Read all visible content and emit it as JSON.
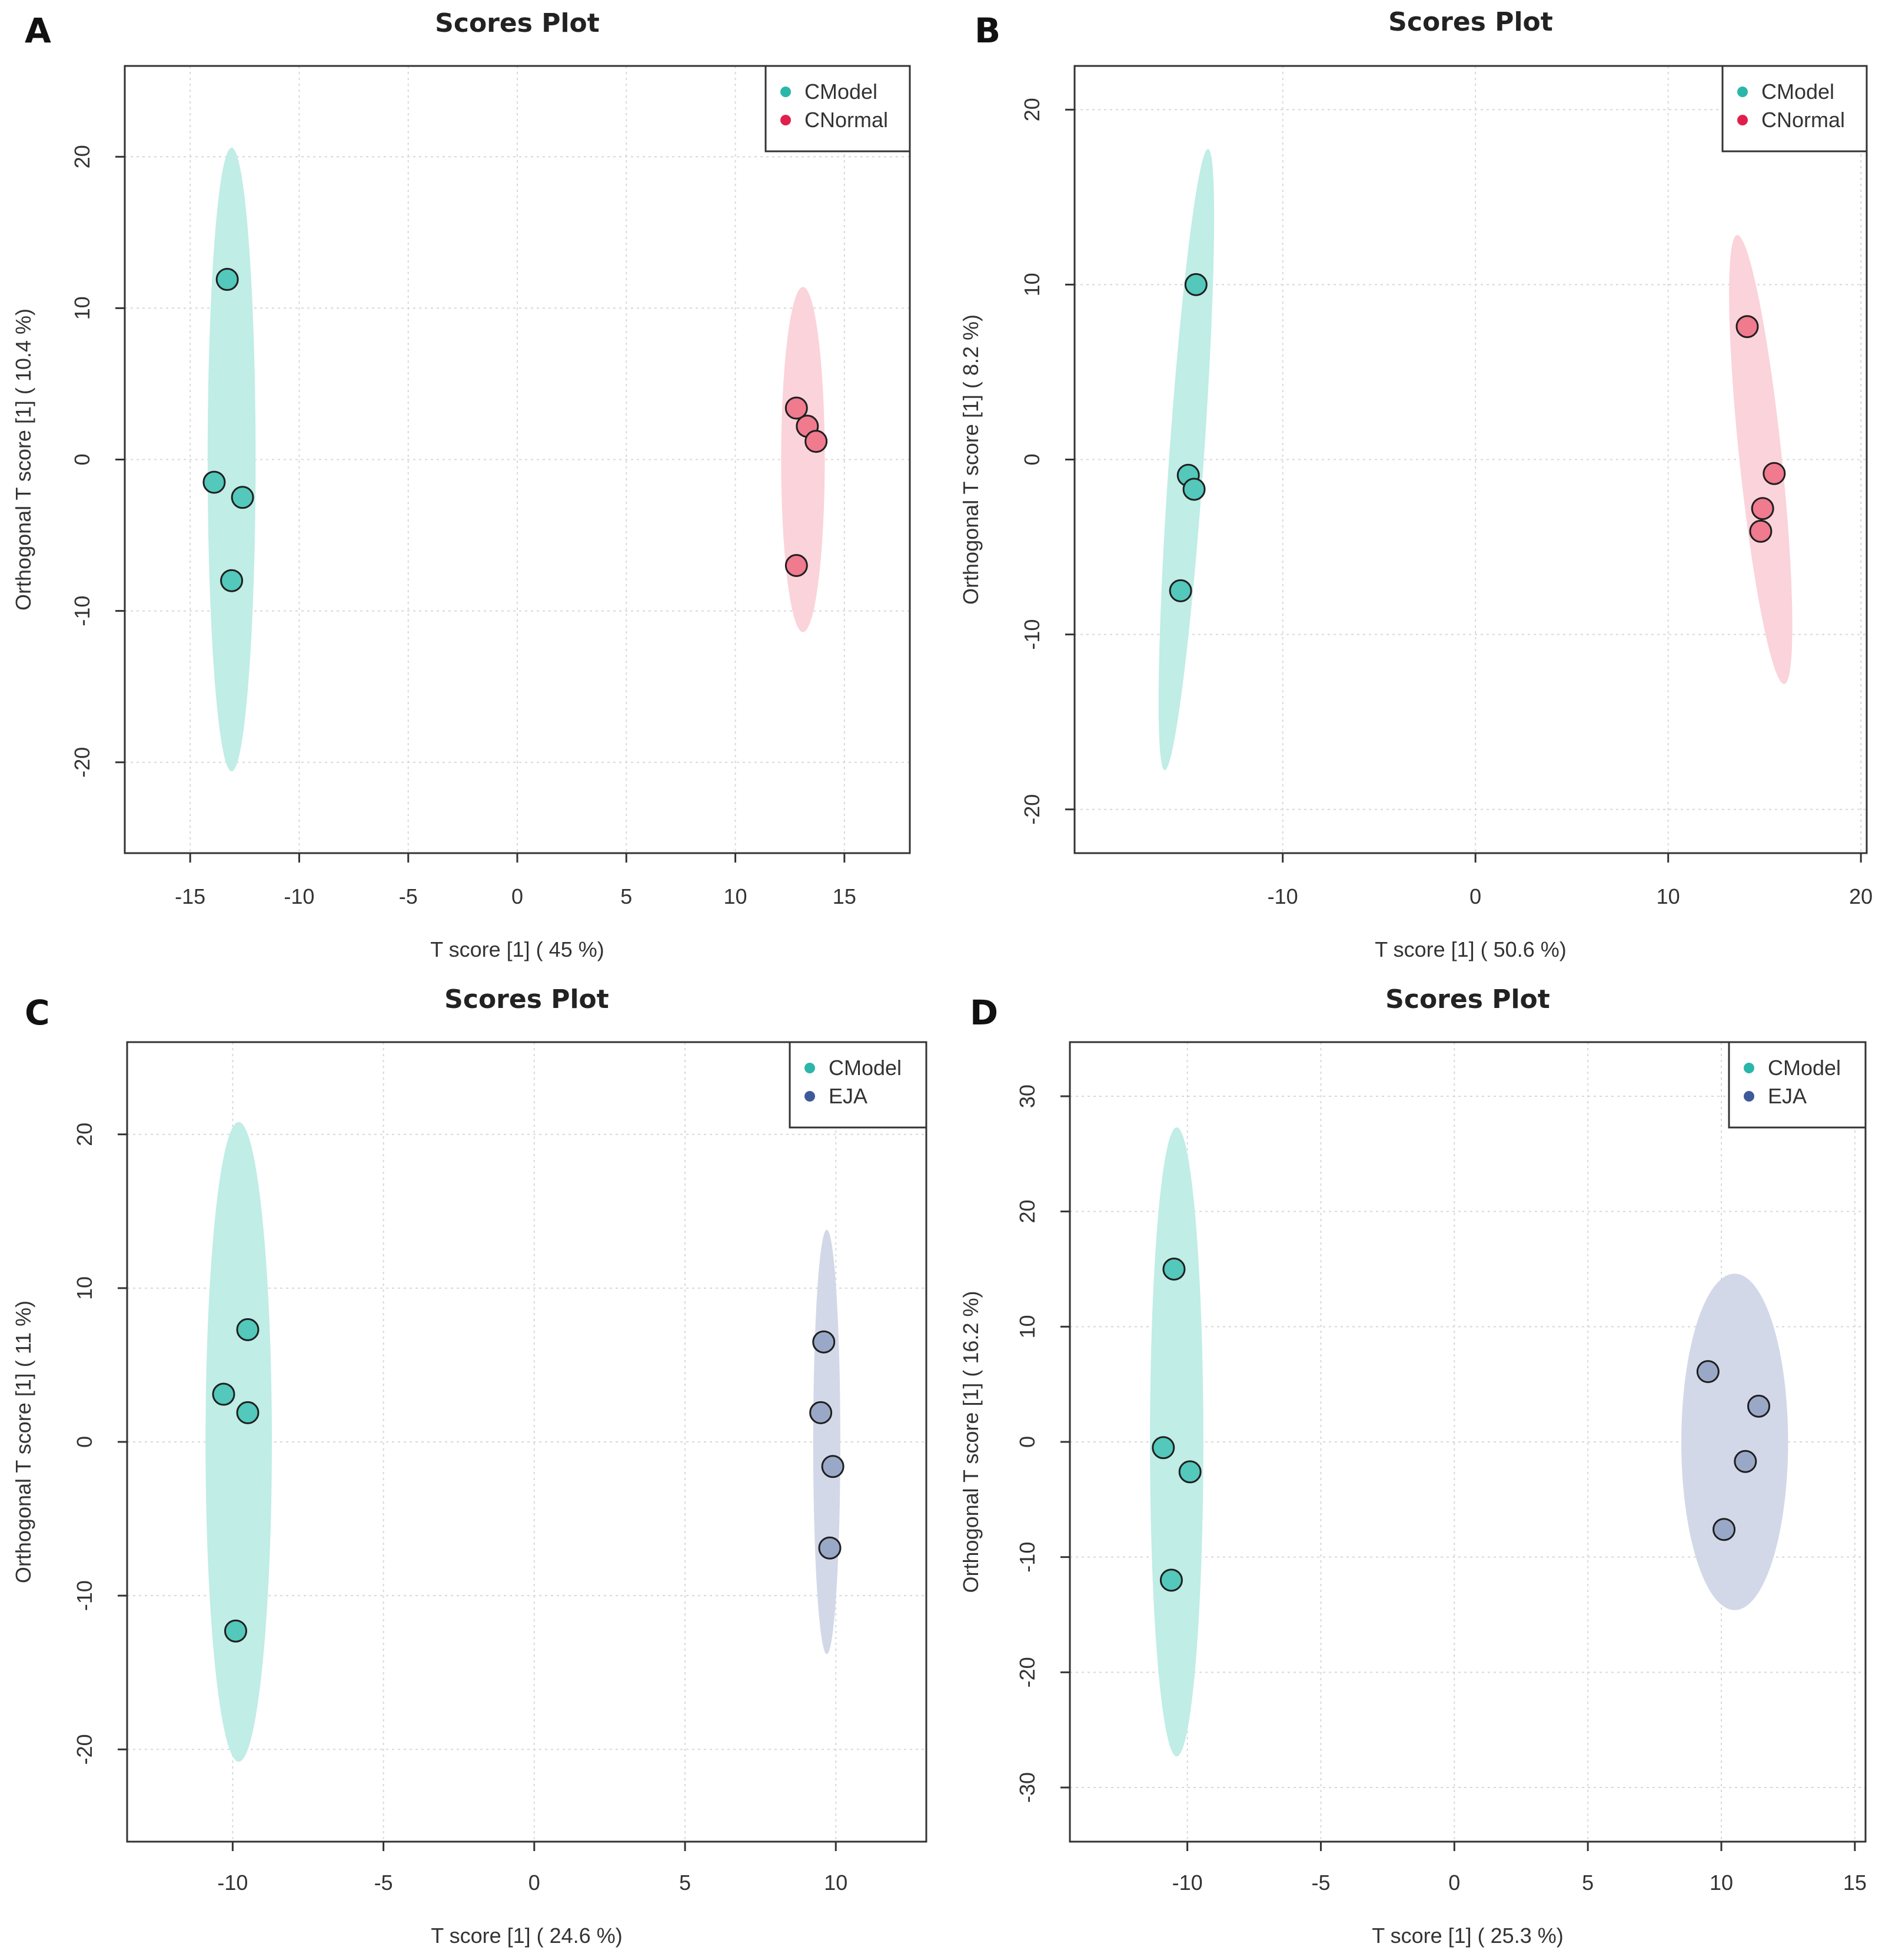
{
  "chart_data": [
    {
      "panel": "A",
      "type": "scatter",
      "title": "Scores Plot",
      "xlabel": "T score [1] ( 45 %)",
      "ylabel": "Orthogonal T score [1] ( 10.4 %)",
      "xlim": [
        -18,
        18
      ],
      "ylim": [
        -26,
        26
      ],
      "xticks": [
        -15,
        -10,
        -5,
        0,
        5,
        10,
        15
      ],
      "yticks": [
        -20,
        -10,
        0,
        10,
        20
      ],
      "grid": true,
      "legend_position": "top-right",
      "series": [
        {
          "name": "CModel",
          "color": "#2ab7a9",
          "fill": "#53c8bb",
          "ellipse_color": "#c0ede6",
          "points": [
            [
              -13.3,
              11.9
            ],
            [
              -13.9,
              -1.5
            ],
            [
              -12.6,
              -2.5
            ],
            [
              -13.1,
              -8.0
            ]
          ],
          "ellipse": {
            "cx": -13.1,
            "cy": 0,
            "rx": 1.1,
            "ry": 20.6
          }
        },
        {
          "name": "CNormal",
          "color": "#e0204b",
          "fill": "#f07a8e",
          "ellipse_color": "#fbd3da",
          "points": [
            [
              12.8,
              3.4
            ],
            [
              13.3,
              2.2
            ],
            [
              13.7,
              1.2
            ],
            [
              12.8,
              -7.0
            ]
          ],
          "ellipse": {
            "cx": 13.1,
            "cy": 0,
            "rx": 1.0,
            "ry": 11.4
          }
        }
      ]
    },
    {
      "panel": "B",
      "type": "scatter",
      "title": "Scores Plot",
      "xlabel": "T score [1] ( 50.6 %)",
      "ylabel": "Orthogonal T score [1] ( 8.2 %)",
      "xlim": [
        -20.8,
        20.3
      ],
      "ylim": [
        -22.5,
        22.5
      ],
      "xticks": [
        -10,
        0,
        10,
        20
      ],
      "yticks": [
        -20,
        -10,
        0,
        10,
        20
      ],
      "grid": true,
      "legend_position": "top-right",
      "series": [
        {
          "name": "CModel",
          "color": "#2ab7a9",
          "fill": "#53c8bb",
          "ellipse_color": "#c0ede6",
          "points": [
            [
              -14.5,
              10.0
            ],
            [
              -14.9,
              -0.9
            ],
            [
              -14.6,
              -1.7
            ],
            [
              -15.3,
              -7.5
            ]
          ],
          "ellipse": {
            "cx": -15.0,
            "cy": 0,
            "rx": 0.9,
            "ry": 17.8,
            "rotate_deg": 4
          }
        },
        {
          "name": "CNormal",
          "color": "#e0204b",
          "fill": "#f07a8e",
          "ellipse_color": "#fbd3da",
          "points": [
            [
              14.1,
              7.6
            ],
            [
              15.5,
              -0.8
            ],
            [
              14.9,
              -2.8
            ],
            [
              14.8,
              -4.1
            ]
          ],
          "ellipse": {
            "cx": 14.8,
            "cy": 0,
            "rx": 1.1,
            "ry": 12.9,
            "rotate_deg": -6
          }
        }
      ]
    },
    {
      "panel": "C",
      "type": "scatter",
      "title": "Scores Plot",
      "xlabel": "T score [1] ( 24.6 %)",
      "ylabel": "Orthogonal T score [1] ( 11 %)",
      "xlim": [
        -13.5,
        13
      ],
      "ylim": [
        -26,
        26
      ],
      "xticks": [
        -10,
        -5,
        0,
        5,
        10
      ],
      "yticks": [
        -20,
        -10,
        0,
        10,
        20
      ],
      "grid": true,
      "legend_position": "top-right",
      "series": [
        {
          "name": "CModel",
          "color": "#2ab7a9",
          "fill": "#53c8bb",
          "ellipse_color": "#c0ede6",
          "points": [
            [
              -9.5,
              7.3
            ],
            [
              -10.3,
              3.1
            ],
            [
              -9.5,
              1.9
            ],
            [
              -9.9,
              -12.3
            ]
          ],
          "ellipse": {
            "cx": -9.8,
            "cy": 0,
            "rx": 1.1,
            "ry": 20.8
          }
        },
        {
          "name": "EJA",
          "color": "#3f5a9a",
          "fill": "#9aa8c8",
          "ellipse_color": "#d3d8e8",
          "points": [
            [
              9.6,
              6.5
            ],
            [
              9.5,
              1.9
            ],
            [
              9.9,
              -1.6
            ],
            [
              9.8,
              -6.9
            ]
          ],
          "ellipse": {
            "cx": 9.7,
            "cy": 0,
            "rx": 0.45,
            "ry": 13.8
          }
        }
      ]
    },
    {
      "panel": "D",
      "type": "scatter",
      "title": "Scores Plot",
      "xlabel": "T score [1] ( 25.3 %)",
      "ylabel": "Orthogonal T score [1] ( 16.2 %)",
      "xlim": [
        -14.4,
        15.4
      ],
      "ylim": [
        -34.7,
        34.7
      ],
      "xticks": [
        -10,
        -5,
        0,
        5,
        10,
        15
      ],
      "yticks": [
        -30,
        -20,
        -10,
        0,
        10,
        20,
        30
      ],
      "grid": true,
      "legend_position": "top-right",
      "series": [
        {
          "name": "CModel",
          "color": "#2ab7a9",
          "fill": "#53c8bb",
          "ellipse_color": "#c0ede6",
          "points": [
            [
              -10.5,
              15.0
            ],
            [
              -10.9,
              -0.5
            ],
            [
              -9.9,
              -2.6
            ],
            [
              -10.6,
              -12.0
            ]
          ],
          "ellipse": {
            "cx": -10.4,
            "cy": 0,
            "rx": 1.0,
            "ry": 27.3
          }
        },
        {
          "name": "EJA",
          "color": "#3f5a9a",
          "fill": "#9aa8c8",
          "ellipse_color": "#d3d8e8",
          "points": [
            [
              9.5,
              6.1
            ],
            [
              11.4,
              3.1
            ],
            [
              10.9,
              -1.7
            ],
            [
              10.1,
              -7.6
            ]
          ],
          "ellipse": {
            "cx": 10.5,
            "cy": 0,
            "rx": 2.0,
            "ry": 14.6
          }
        }
      ]
    }
  ]
}
